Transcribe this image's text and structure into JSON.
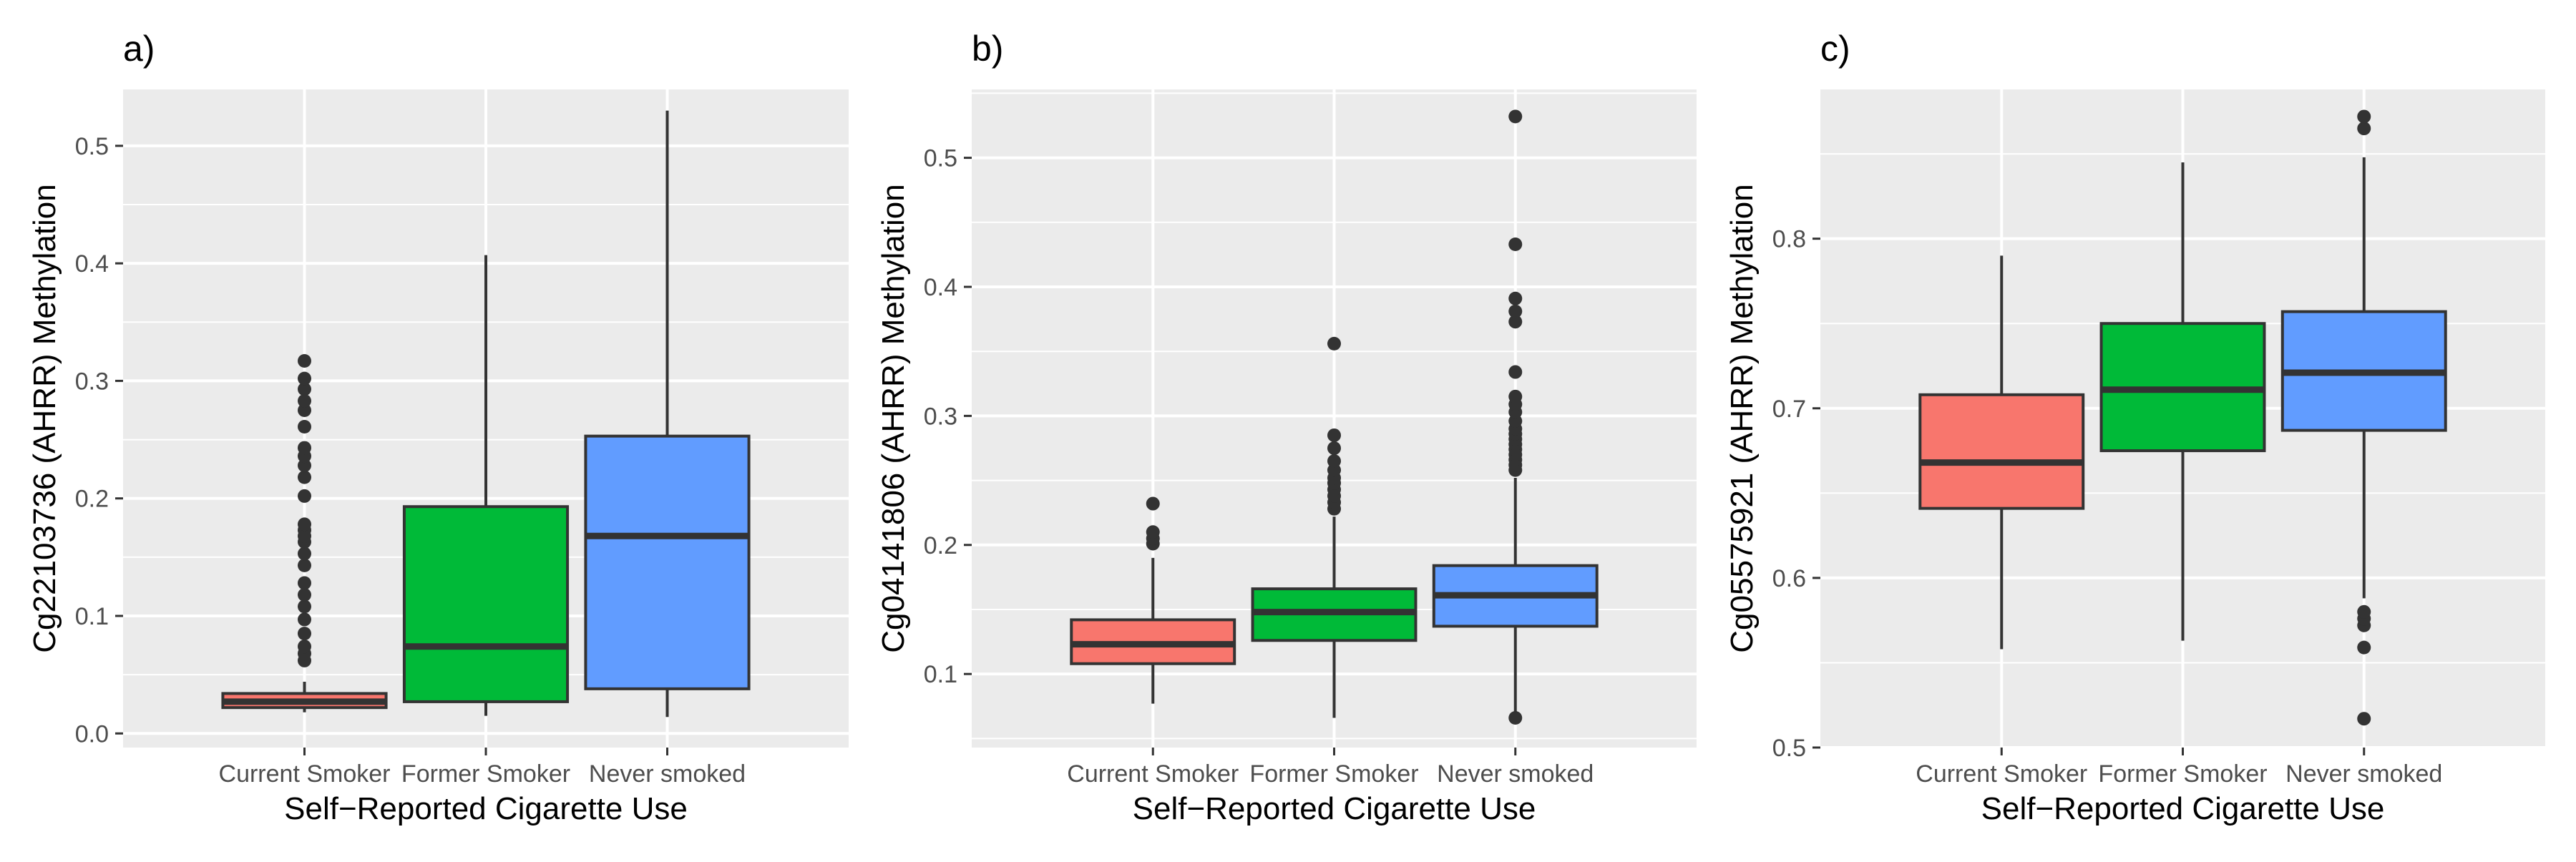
{
  "chart_data": [
    {
      "type": "boxplot",
      "tag": "a)",
      "xlabel": "Self−Reported Cigarette Use",
      "ylabel": "Cg22103736 (AHRR) Methylation",
      "ylim": [
        -0.012,
        0.548
      ],
      "yticks": [
        0.0,
        0.1,
        0.2,
        0.3,
        0.4,
        0.5
      ],
      "ytick_labels": [
        "0.0",
        "0.1",
        "0.2",
        "0.3",
        "0.4",
        "0.5"
      ],
      "categories": [
        "Current Smoker",
        "Former Smoker",
        "Never smoked"
      ],
      "colors": [
        "#F8766D",
        "#00BA38",
        "#619CFF"
      ],
      "boxes": [
        {
          "whisker_low": 0.018,
          "q1": 0.022,
          "median": 0.027,
          "q3": 0.034,
          "whisker_high": 0.044,
          "outliers": [
            0.062,
            0.068,
            0.074,
            0.085,
            0.097,
            0.108,
            0.118,
            0.128,
            0.143,
            0.153,
            0.163,
            0.168,
            0.173,
            0.178,
            0.202,
            0.218,
            0.228,
            0.236,
            0.243,
            0.261,
            0.275,
            0.283,
            0.293,
            0.302,
            0.317
          ]
        },
        {
          "whisker_low": 0.015,
          "q1": 0.027,
          "median": 0.074,
          "q3": 0.193,
          "whisker_high": 0.407,
          "outliers": []
        },
        {
          "whisker_low": 0.014,
          "q1": 0.038,
          "median": 0.168,
          "q3": 0.253,
          "whisker_high": 0.53,
          "outliers": []
        }
      ]
    },
    {
      "type": "boxplot",
      "tag": "b)",
      "xlabel": "Self−Reported Cigarette Use",
      "ylabel": "Cg04141806 (AHRR) Methylation",
      "ylim": [
        0.043,
        0.553
      ],
      "yticks": [
        0.1,
        0.2,
        0.3,
        0.4,
        0.5
      ],
      "ytick_labels": [
        "0.1",
        "0.2",
        "0.3",
        "0.4",
        "0.5"
      ],
      "categories": [
        "Current Smoker",
        "Former Smoker",
        "Never smoked"
      ],
      "colors": [
        "#F8766D",
        "#00BA38",
        "#619CFF"
      ],
      "boxes": [
        {
          "whisker_low": 0.077,
          "q1": 0.108,
          "median": 0.123,
          "q3": 0.142,
          "whisker_high": 0.19,
          "outliers": [
            0.201,
            0.205,
            0.21,
            0.232
          ]
        },
        {
          "whisker_low": 0.066,
          "q1": 0.126,
          "median": 0.148,
          "q3": 0.166,
          "whisker_high": 0.222,
          "outliers": [
            0.228,
            0.233,
            0.238,
            0.243,
            0.248,
            0.252,
            0.258,
            0.265,
            0.275,
            0.285,
            0.356
          ]
        },
        {
          "whisker_low": 0.069,
          "q1": 0.137,
          "median": 0.161,
          "q3": 0.184,
          "whisker_high": 0.252,
          "outliers": [
            0.066,
            0.258,
            0.262,
            0.266,
            0.27,
            0.274,
            0.278,
            0.282,
            0.286,
            0.29,
            0.296,
            0.303,
            0.309,
            0.315,
            0.334,
            0.373,
            0.381,
            0.391,
            0.433,
            0.532
          ]
        }
      ]
    },
    {
      "type": "boxplot",
      "tag": "c)",
      "xlabel": "Self−Reported Cigarette Use",
      "ylabel": "Cg05575921 (AHRR) Methylation",
      "ylim": [
        0.5,
        0.888
      ],
      "yticks": [
        0.5,
        0.6,
        0.7,
        0.8
      ],
      "ytick_labels": [
        "0.5",
        "0.6",
        "0.7",
        "0.8"
      ],
      "categories": [
        "Current Smoker",
        "Former Smoker",
        "Never smoked"
      ],
      "colors": [
        "#F8766D",
        "#00BA38",
        "#619CFF"
      ],
      "boxes": [
        {
          "whisker_low": 0.558,
          "q1": 0.641,
          "median": 0.668,
          "q3": 0.708,
          "whisker_high": 0.79,
          "outliers": []
        },
        {
          "whisker_low": 0.563,
          "q1": 0.675,
          "median": 0.711,
          "q3": 0.75,
          "whisker_high": 0.845,
          "outliers": []
        },
        {
          "whisker_low": 0.588,
          "q1": 0.687,
          "median": 0.721,
          "q3": 0.757,
          "whisker_high": 0.848,
          "outliers": [
            0.517,
            0.559,
            0.572,
            0.576,
            0.58,
            0.865,
            0.872
          ]
        }
      ]
    }
  ]
}
